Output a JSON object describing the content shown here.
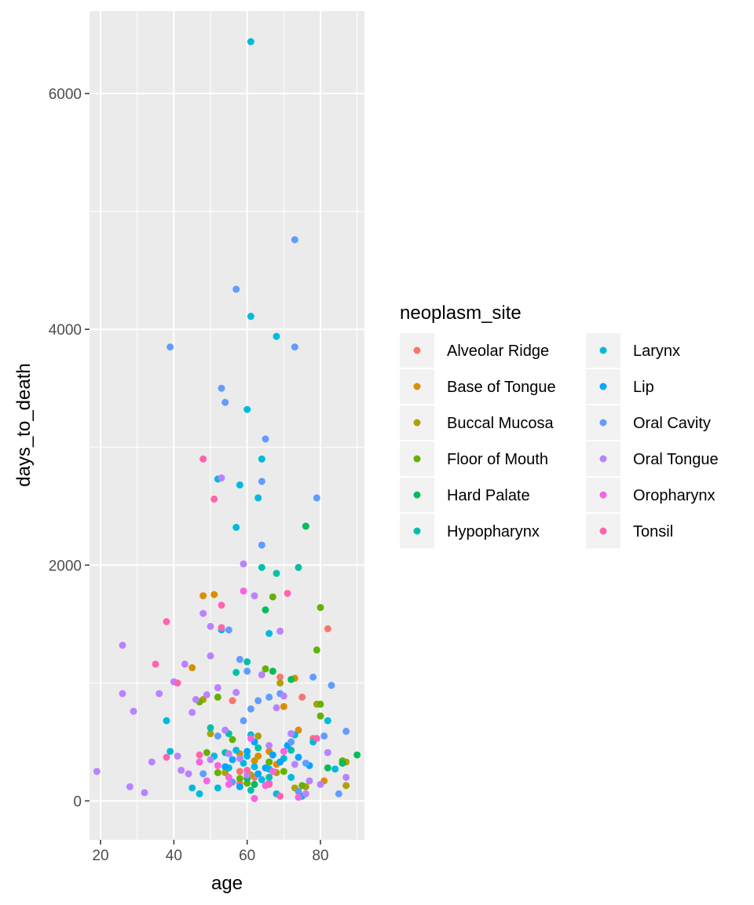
{
  "chart_data": {
    "type": "scatter",
    "xlabel": "age",
    "ylabel": "days_to_death",
    "xlim": [
      17,
      92
    ],
    "ylim": [
      -330,
      6700
    ],
    "x_ticks": [
      20,
      40,
      60,
      80
    ],
    "y_ticks": [
      0,
      2000,
      4000,
      6000
    ],
    "grid": true,
    "legend": {
      "title": "neoplasm_site",
      "placement": "right",
      "columns": 2
    },
    "series": [
      {
        "name": "Alveolar Ridge",
        "color": "#F8766D",
        "points": [
          [
            56,
            850
          ],
          [
            58,
            250
          ],
          [
            62,
            200
          ],
          [
            69,
            1050
          ],
          [
            75,
            880
          ],
          [
            78,
            530
          ],
          [
            82,
            1460
          ],
          [
            58,
            150
          ]
        ]
      },
      {
        "name": "Base of Tongue",
        "color": "#DB8E00",
        "points": [
          [
            45,
            1130
          ],
          [
            48,
            1740
          ],
          [
            51,
            1750
          ],
          [
            58,
            400
          ],
          [
            62,
            340
          ],
          [
            63,
            380
          ],
          [
            66,
            420
          ],
          [
            68,
            310
          ],
          [
            70,
            800
          ],
          [
            73,
            1040
          ],
          [
            74,
            600
          ],
          [
            81,
            170
          ]
        ]
      },
      {
        "name": "Buccal Mucosa",
        "color": "#AEA200",
        "points": [
          [
            48,
            860
          ],
          [
            50,
            570
          ],
          [
            54,
            240
          ],
          [
            61,
            220
          ],
          [
            63,
            550
          ],
          [
            66,
            330
          ],
          [
            68,
            240
          ],
          [
            69,
            1000
          ],
          [
            73,
            110
          ],
          [
            76,
            120
          ],
          [
            79,
            820
          ],
          [
            87,
            330
          ],
          [
            87,
            130
          ]
        ]
      },
      {
        "name": "Floor of Mouth",
        "color": "#64B200",
        "points": [
          [
            47,
            840
          ],
          [
            49,
            410
          ],
          [
            52,
            880
          ],
          [
            52,
            240
          ],
          [
            56,
            520
          ],
          [
            58,
            190
          ],
          [
            60,
            150
          ],
          [
            65,
            1120
          ],
          [
            66,
            330
          ],
          [
            67,
            1730
          ],
          [
            70,
            250
          ],
          [
            75,
            130
          ],
          [
            79,
            1280
          ],
          [
            80,
            720
          ],
          [
            80,
            1640
          ],
          [
            80,
            820
          ],
          [
            86,
            340
          ]
        ]
      },
      {
        "name": "Hard Palate",
        "color": "#00BD5C",
        "points": [
          [
            62,
            140
          ],
          [
            65,
            1620
          ],
          [
            67,
            1100
          ],
          [
            72,
            1030
          ],
          [
            76,
            2330
          ],
          [
            82,
            280
          ],
          [
            86,
            320
          ],
          [
            90,
            390
          ],
          [
            60,
            190
          ]
        ]
      },
      {
        "name": "Hypopharynx",
        "color": "#00C1A7",
        "points": [
          [
            50,
            620
          ],
          [
            55,
            570
          ],
          [
            57,
            1090
          ],
          [
            60,
            1180
          ],
          [
            63,
            450
          ],
          [
            64,
            1980
          ],
          [
            68,
            1930
          ],
          [
            74,
            1980
          ],
          [
            54,
            410
          ],
          [
            66,
            200
          ],
          [
            72,
            430
          ],
          [
            61,
            90
          ]
        ]
      },
      {
        "name": "Larynx",
        "color": "#00BADE",
        "points": [
          [
            61,
            6440
          ],
          [
            61,
            4110
          ],
          [
            68,
            3940
          ],
          [
            60,
            3320
          ],
          [
            64,
            2900
          ],
          [
            52,
            2730
          ],
          [
            58,
            2680
          ],
          [
            63,
            2570
          ],
          [
            57,
            2320
          ],
          [
            66,
            1420
          ],
          [
            38,
            680
          ],
          [
            45,
            110
          ],
          [
            53,
            1450
          ],
          [
            57,
            430
          ],
          [
            60,
            380
          ],
          [
            62,
            290
          ],
          [
            64,
            180
          ],
          [
            66,
            270
          ],
          [
            70,
            360
          ],
          [
            73,
            560
          ],
          [
            78,
            500
          ],
          [
            82,
            680
          ],
          [
            52,
            110
          ],
          [
            55,
            280
          ],
          [
            59,
            320
          ],
          [
            68,
            60
          ],
          [
            75,
            40
          ],
          [
            47,
            60
          ],
          [
            51,
            380
          ],
          [
            61,
            560
          ],
          [
            72,
            200
          ],
          [
            84,
            270
          ],
          [
            39,
            420
          ]
        ]
      },
      {
        "name": "Lip",
        "color": "#00A5FF",
        "points": [
          [
            54,
            290
          ],
          [
            56,
            350
          ],
          [
            60,
            420
          ],
          [
            62,
            500
          ],
          [
            65,
            280
          ],
          [
            67,
            390
          ],
          [
            69,
            330
          ],
          [
            71,
            470
          ],
          [
            74,
            370
          ],
          [
            58,
            120
          ],
          [
            63,
            230
          ],
          [
            77,
            300
          ]
        ]
      },
      {
        "name": "Oral Cavity",
        "color": "#619CFF",
        "points": [
          [
            73,
            4760
          ],
          [
            57,
            4340
          ],
          [
            73,
            3850
          ],
          [
            39,
            3850
          ],
          [
            53,
            3500
          ],
          [
            54,
            3380
          ],
          [
            65,
            3070
          ],
          [
            64,
            2710
          ],
          [
            79,
            2570
          ],
          [
            64,
            2170
          ],
          [
            55,
            1450
          ],
          [
            58,
            1200
          ],
          [
            60,
            1100
          ],
          [
            63,
            850
          ],
          [
            66,
            880
          ],
          [
            69,
            910
          ],
          [
            72,
            500
          ],
          [
            76,
            320
          ],
          [
            78,
            1050
          ],
          [
            81,
            550
          ],
          [
            83,
            980
          ],
          [
            85,
            60
          ],
          [
            87,
            590
          ],
          [
            59,
            680
          ],
          [
            61,
            780
          ],
          [
            48,
            230
          ],
          [
            52,
            550
          ],
          [
            56,
            160
          ],
          [
            74,
            80
          ],
          [
            66,
            150
          ]
        ]
      },
      {
        "name": "Oral Tongue",
        "color": "#B983FF",
        "points": [
          [
            19,
            250
          ],
          [
            26,
            910
          ],
          [
            26,
            1320
          ],
          [
            28,
            120
          ],
          [
            29,
            760
          ],
          [
            32,
            70
          ],
          [
            34,
            330
          ],
          [
            36,
            910
          ],
          [
            40,
            1010
          ],
          [
            41,
            380
          ],
          [
            42,
            260
          ],
          [
            43,
            1160
          ],
          [
            44,
            230
          ],
          [
            45,
            750
          ],
          [
            46,
            860
          ],
          [
            48,
            1590
          ],
          [
            49,
            900
          ],
          [
            50,
            1480
          ],
          [
            50,
            1230
          ],
          [
            52,
            960
          ],
          [
            53,
            2740
          ],
          [
            54,
            600
          ],
          [
            55,
            400
          ],
          [
            57,
            920
          ],
          [
            59,
            2010
          ],
          [
            62,
            1740
          ],
          [
            64,
            1070
          ],
          [
            66,
            470
          ],
          [
            68,
            790
          ],
          [
            69,
            1440
          ],
          [
            70,
            890
          ],
          [
            72,
            570
          ],
          [
            73,
            310
          ],
          [
            77,
            170
          ],
          [
            80,
            140
          ],
          [
            82,
            410
          ],
          [
            87,
            200
          ],
          [
            60,
            220
          ],
          [
            58,
            360
          ],
          [
            50,
            350
          ],
          [
            76,
            60
          ]
        ]
      },
      {
        "name": "Oropharynx",
        "color": "#F564E3",
        "points": [
          [
            47,
            330
          ],
          [
            49,
            170
          ],
          [
            52,
            300
          ],
          [
            55,
            200
          ],
          [
            59,
            1780
          ],
          [
            61,
            530
          ],
          [
            65,
            130
          ],
          [
            67,
            250
          ],
          [
            70,
            420
          ],
          [
            74,
            30
          ],
          [
            62,
            20
          ],
          [
            55,
            140
          ]
        ]
      },
      {
        "name": "Tonsil",
        "color": "#FF64B0",
        "points": [
          [
            48,
            2900
          ],
          [
            51,
            2560
          ],
          [
            38,
            1520
          ],
          [
            35,
            1160
          ],
          [
            41,
            1000
          ],
          [
            53,
            1660
          ],
          [
            53,
            1470
          ],
          [
            38,
            370
          ],
          [
            47,
            390
          ],
          [
            71,
            1760
          ],
          [
            79,
            530
          ],
          [
            60,
            260
          ],
          [
            66,
            140
          ],
          [
            69,
            40
          ]
        ]
      }
    ]
  }
}
